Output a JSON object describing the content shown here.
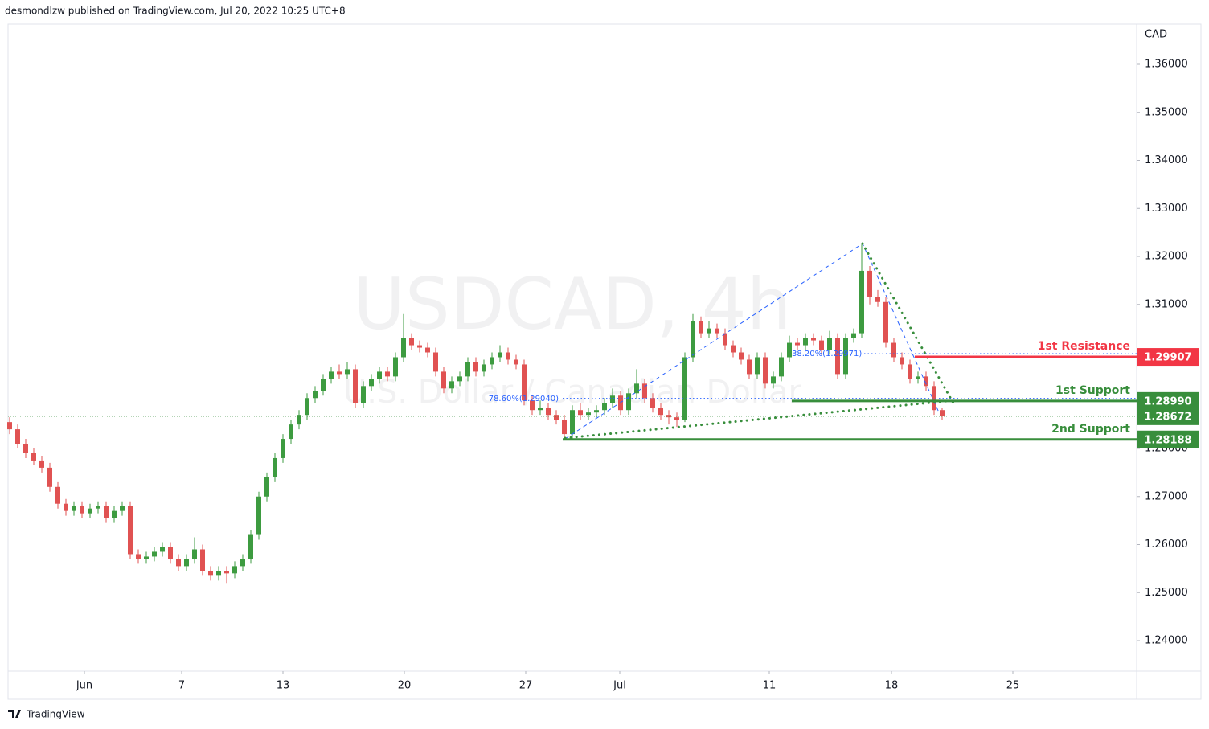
{
  "header": {
    "author_line": "desmondlzw published on TradingView.com, Jul 20, 2022 10:25 UTC+8"
  },
  "footer": {
    "brand": "TradingView"
  },
  "chart_data": {
    "type": "candlestick",
    "symbol_watermark": "USDCAD, 4h",
    "name_watermark": "U.S. Dollar / Canadian Dollar",
    "y_axis_label": "CAD",
    "up_color": "#3d9b40",
    "down_color": "#e05252",
    "candles": [
      [
        1.2855,
        1.2865,
        1.283,
        1.284
      ],
      [
        1.284,
        1.285,
        1.28,
        1.281
      ],
      [
        1.281,
        1.282,
        1.278,
        1.279
      ],
      [
        1.279,
        1.28,
        1.2765,
        1.2775
      ],
      [
        1.2775,
        1.2785,
        1.275,
        1.276
      ],
      [
        1.276,
        1.277,
        1.271,
        1.272
      ],
      [
        1.272,
        1.273,
        1.2675,
        1.2685
      ],
      [
        1.2685,
        1.2695,
        1.266,
        1.267
      ],
      [
        1.267,
        1.269,
        1.266,
        1.268
      ],
      [
        1.268,
        1.269,
        1.2655,
        1.2665
      ],
      [
        1.2665,
        1.2685,
        1.2655,
        1.2675
      ],
      [
        1.2675,
        1.269,
        1.2665,
        1.268
      ],
      [
        1.268,
        1.269,
        1.2645,
        1.2655
      ],
      [
        1.2655,
        1.268,
        1.2645,
        1.267
      ],
      [
        1.267,
        1.269,
        1.266,
        1.268
      ],
      [
        1.268,
        1.269,
        1.257,
        1.258
      ],
      [
        1.258,
        1.259,
        1.256,
        1.257
      ],
      [
        1.257,
        1.2585,
        1.256,
        1.2575
      ],
      [
        1.2575,
        1.2595,
        1.2565,
        1.2585
      ],
      [
        1.2585,
        1.2605,
        1.2575,
        1.2595
      ],
      [
        1.2595,
        1.2605,
        1.256,
        1.257
      ],
      [
        1.257,
        1.258,
        1.2545,
        1.2555
      ],
      [
        1.2555,
        1.258,
        1.2545,
        1.257
      ],
      [
        1.257,
        1.2615,
        1.256,
        1.259
      ],
      [
        1.259,
        1.26,
        1.2535,
        1.2545
      ],
      [
        1.2545,
        1.2555,
        1.2525,
        1.2535
      ],
      [
        1.2535,
        1.2555,
        1.2525,
        1.2545
      ],
      [
        1.2545,
        1.2555,
        1.252,
        1.254
      ],
      [
        1.254,
        1.2565,
        1.253,
        1.2555
      ],
      [
        1.2555,
        1.258,
        1.2545,
        1.257
      ],
      [
        1.257,
        1.263,
        1.256,
        1.262
      ],
      [
        1.262,
        1.271,
        1.261,
        1.27
      ],
      [
        1.27,
        1.275,
        1.269,
        1.274
      ],
      [
        1.274,
        1.279,
        1.273,
        1.278
      ],
      [
        1.278,
        1.283,
        1.277,
        1.282
      ],
      [
        1.282,
        1.286,
        1.281,
        1.285
      ],
      [
        1.285,
        1.288,
        1.284,
        1.287
      ],
      [
        1.287,
        1.2915,
        1.286,
        1.2905
      ],
      [
        1.2905,
        1.293,
        1.2895,
        1.292
      ],
      [
        1.292,
        1.2955,
        1.291,
        1.2945
      ],
      [
        1.2945,
        1.297,
        1.2935,
        1.296
      ],
      [
        1.296,
        1.2975,
        1.2945,
        1.2955
      ],
      [
        1.2955,
        1.298,
        1.2945,
        1.2965
      ],
      [
        1.2965,
        1.2975,
        1.2885,
        1.2895
      ],
      [
        1.2895,
        1.294,
        1.2885,
        1.293
      ],
      [
        1.293,
        1.2955,
        1.292,
        1.2945
      ],
      [
        1.2945,
        1.297,
        1.2935,
        1.296
      ],
      [
        1.296,
        1.297,
        1.294,
        1.295
      ],
      [
        1.295,
        1.3,
        1.294,
        1.299
      ],
      [
        1.299,
        1.308,
        1.298,
        1.303
      ],
      [
        1.303,
        1.304,
        1.3005,
        1.3015
      ],
      [
        1.3015,
        1.3025,
        1.3,
        1.301
      ],
      [
        1.301,
        1.302,
        1.299,
        1.3
      ],
      [
        1.3,
        1.301,
        1.295,
        1.296
      ],
      [
        1.296,
        1.297,
        1.2915,
        1.2925
      ],
      [
        1.2925,
        1.295,
        1.2915,
        1.294
      ],
      [
        1.294,
        1.296,
        1.293,
        1.295
      ],
      [
        1.295,
        1.299,
        1.294,
        1.298
      ],
      [
        1.298,
        1.299,
        1.295,
        1.296
      ],
      [
        1.296,
        1.2985,
        1.295,
        1.2975
      ],
      [
        1.2975,
        1.3,
        1.2965,
        1.299
      ],
      [
        1.299,
        1.3015,
        1.298,
        1.3
      ],
      [
        1.3,
        1.301,
        1.2975,
        1.2985
      ],
      [
        1.2985,
        1.2995,
        1.2965,
        1.2975
      ],
      [
        1.2975,
        1.2985,
        1.289,
        1.29
      ],
      [
        1.29,
        1.291,
        1.287,
        1.288
      ],
      [
        1.288,
        1.29,
        1.287,
        1.2885
      ],
      [
        1.2885,
        1.2895,
        1.286,
        1.287
      ],
      [
        1.287,
        1.288,
        1.285,
        1.286
      ],
      [
        1.286,
        1.287,
        1.2819,
        1.283
      ],
      [
        1.283,
        1.289,
        1.282,
        1.288
      ],
      [
        1.288,
        1.2895,
        1.286,
        1.287
      ],
      [
        1.287,
        1.2885,
        1.286,
        1.2875
      ],
      [
        1.2875,
        1.289,
        1.2865,
        1.288
      ],
      [
        1.288,
        1.2905,
        1.287,
        1.2895
      ],
      [
        1.2895,
        1.2925,
        1.2885,
        1.291
      ],
      [
        1.291,
        1.292,
        1.287,
        1.288
      ],
      [
        1.288,
        1.2925,
        1.287,
        1.2915
      ],
      [
        1.2915,
        1.2965,
        1.2905,
        1.2935
      ],
      [
        1.2935,
        1.2945,
        1.2895,
        1.2905
      ],
      [
        1.2905,
        1.2915,
        1.2875,
        1.2885
      ],
      [
        1.2885,
        1.2895,
        1.286,
        1.287
      ],
      [
        1.287,
        1.288,
        1.285,
        1.2865
      ],
      [
        1.2865,
        1.2875,
        1.2845,
        1.286
      ],
      [
        1.286,
        1.3,
        1.2855,
        1.299
      ],
      [
        1.299,
        1.308,
        1.298,
        1.3065
      ],
      [
        1.3065,
        1.3075,
        1.303,
        1.304
      ],
      [
        1.304,
        1.3065,
        1.303,
        1.305
      ],
      [
        1.305,
        1.306,
        1.303,
        1.304
      ],
      [
        1.304,
        1.305,
        1.3005,
        1.3015
      ],
      [
        1.3015,
        1.3025,
        1.299,
        1.3
      ],
      [
        1.3,
        1.301,
        1.2975,
        1.2985
      ],
      [
        1.2985,
        1.2995,
        1.2945,
        1.2955
      ],
      [
        1.2955,
        1.3,
        1.2945,
        1.299
      ],
      [
        1.299,
        1.3,
        1.2925,
        1.2935
      ],
      [
        1.2935,
        1.296,
        1.2925,
        1.295
      ],
      [
        1.295,
        1.3,
        1.294,
        1.299
      ],
      [
        1.299,
        1.3035,
        1.298,
        1.302
      ],
      [
        1.302,
        1.303,
        1.3005,
        1.3015
      ],
      [
        1.3015,
        1.304,
        1.3005,
        1.303
      ],
      [
        1.303,
        1.304,
        1.3015,
        1.3025
      ],
      [
        1.3025,
        1.3035,
        1.2995,
        1.3005
      ],
      [
        1.3005,
        1.3045,
        1.2995,
        1.303
      ],
      [
        1.303,
        1.304,
        1.2945,
        1.2955
      ],
      [
        1.2955,
        1.304,
        1.2945,
        1.303
      ],
      [
        1.303,
        1.305,
        1.302,
        1.304
      ],
      [
        1.304,
        1.3225,
        1.303,
        1.317
      ],
      [
        1.317,
        1.318,
        1.31,
        1.3115
      ],
      [
        1.3115,
        1.313,
        1.3095,
        1.3105
      ],
      [
        1.3105,
        1.3115,
        1.301,
        1.302
      ],
      [
        1.302,
        1.303,
        1.298,
        1.299
      ],
      [
        1.299,
        1.3,
        1.2965,
        1.2975
      ],
      [
        1.2975,
        1.2985,
        1.2935,
        1.2945
      ],
      [
        1.2945,
        1.296,
        1.2935,
        1.295
      ],
      [
        1.295,
        1.296,
        1.292,
        1.293
      ],
      [
        1.293,
        1.294,
        1.287,
        1.288
      ],
      [
        1.288,
        1.2885,
        1.286,
        1.2867
      ]
    ],
    "xlim": [
      -0.2,
      140.2
    ],
    "xticks": [
      {
        "value": 9.3,
        "label": "Jun"
      },
      {
        "value": 21.4,
        "label": "7"
      },
      {
        "value": 34,
        "label": "13"
      },
      {
        "value": 49.1,
        "label": "20"
      },
      {
        "value": 64.2,
        "label": "27"
      },
      {
        "value": 75.9,
        "label": "Jul"
      },
      {
        "value": 94.5,
        "label": "11"
      },
      {
        "value": 109.7,
        "label": "18"
      },
      {
        "value": 124.8,
        "label": "25"
      }
    ],
    "ylim": [
      1.23364,
      1.36837
    ],
    "yticks": [
      {
        "value": 1.36,
        "label": "1.36000"
      },
      {
        "value": 1.35,
        "label": "1.35000"
      },
      {
        "value": 1.34,
        "label": "1.34000"
      },
      {
        "value": 1.33,
        "label": "1.33000"
      },
      {
        "value": 1.32,
        "label": "1.32000"
      },
      {
        "value": 1.31,
        "label": "1.31000"
      },
      {
        "value": 1.28,
        "label": "1.28000"
      },
      {
        "value": 1.27,
        "label": "1.27000"
      },
      {
        "value": 1.26,
        "label": "1.26000"
      },
      {
        "value": 1.25,
        "label": "1.25000"
      },
      {
        "value": 1.24,
        "label": "1.24000"
      }
    ],
    "current_price": 1.28672,
    "current_price_color": "#388e3c",
    "levels": [
      {
        "name": "1st Resistance",
        "price": 1.29907,
        "color": "#f23645"
      },
      {
        "name": "1st Support",
        "price": {
          "value": 1.2899,
          "label": "1.28990"
        },
        "color": "#388e3c"
      },
      {
        "name": "2nd Support",
        "price": 1.28188,
        "color": "#388e3c"
      }
    ],
    "fib_color": "#2962ff",
    "fib_levels": [
      {
        "value": 1.2904,
        "label": "78.60%(1.29040)"
      },
      {
        "value": 1.29971,
        "label": "38.20%(1.29971)"
      }
    ]
  }
}
